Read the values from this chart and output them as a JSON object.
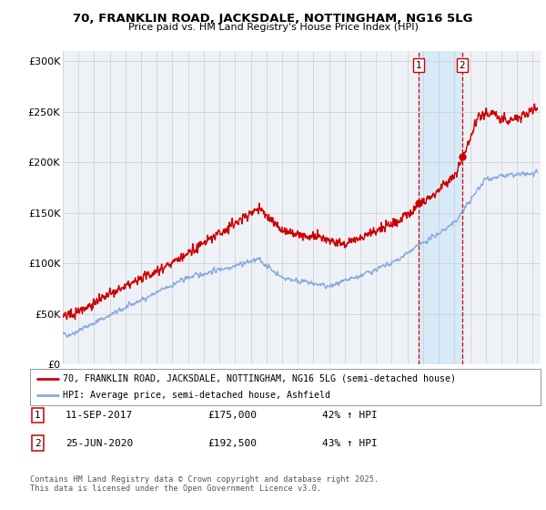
{
  "title": "70, FRANKLIN ROAD, JACKSDALE, NOTTINGHAM, NG16 5LG",
  "subtitle": "Price paid vs. HM Land Registry's House Price Index (HPI)",
  "ylabel_ticks": [
    "£0",
    "£50K",
    "£100K",
    "£150K",
    "£200K",
    "£250K",
    "£300K"
  ],
  "ytick_vals": [
    0,
    50000,
    100000,
    150000,
    200000,
    250000,
    300000
  ],
  "ylim": [
    0,
    310000
  ],
  "xlim_start": 1995.0,
  "xlim_end": 2025.5,
  "legend_line1": "70, FRANKLIN ROAD, JACKSDALE, NOTTINGHAM, NG16 5LG (semi-detached house)",
  "legend_line2": "HPI: Average price, semi-detached house, Ashfield",
  "sale1_date": "11-SEP-2017",
  "sale1_price": "£175,000",
  "sale1_hpi": "42% ↑ HPI",
  "sale1_year": 2017.7,
  "sale2_date": "25-JUN-2020",
  "sale2_price": "£192,500",
  "sale2_hpi": "43% ↑ HPI",
  "sale2_year": 2020.5,
  "footer": "Contains HM Land Registry data © Crown copyright and database right 2025.\nThis data is licensed under the Open Government Licence v3.0.",
  "line_color_red": "#cc0000",
  "line_color_blue": "#88aadd",
  "shade_color": "#d8eaf8",
  "background_color": "#eef2f7",
  "grid_color": "#cccccc",
  "vline_color": "#cc0000"
}
